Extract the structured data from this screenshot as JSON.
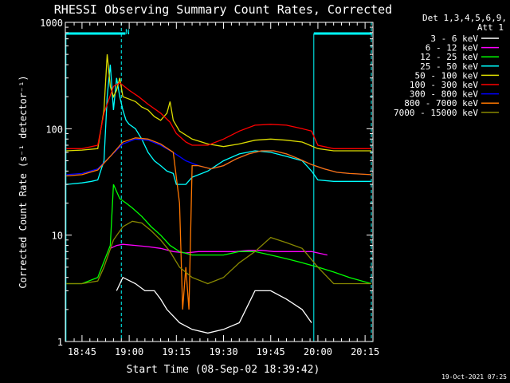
{
  "chart_data": {
    "type": "line",
    "title": "RHESSI Observing Summary Count Rates, Corrected",
    "xlabel": "Start Time (08-Sep-02 18:39:42)",
    "ylabel": "Corrected Count Rate (s⁻¹ detector⁻¹)",
    "yscale": "log",
    "ylim": [
      1,
      1000
    ],
    "xlim_minutes_after_18_00": [
      39.7,
      137.5
    ],
    "x_tick_labels": [
      "18:45",
      "19:00",
      "19:15",
      "19:30",
      "19:45",
      "20:00",
      "20:15"
    ],
    "x_tick_minutes_after_18_00": [
      45,
      60,
      75,
      90,
      105,
      120,
      135
    ],
    "y_tick_labels": [
      "1",
      "10",
      "100",
      "1000"
    ],
    "y_tick_values": [
      1,
      10,
      100,
      1000
    ],
    "legend_header": [
      "Det 1,3,4,5,6,9,",
      "Att 1"
    ],
    "legend_position": "right",
    "timestamp": "19-Oct-2021 07:25",
    "night_marker": "N",
    "event_line_minutes": [
      57.5,
      137.0
    ],
    "night_bar_minutes": [
      [
        39.9,
        58.8
      ],
      [
        118.7,
        137.2
      ]
    ],
    "series": [
      {
        "name": "3 - 6 keV",
        "color": "#ffffff",
        "x": [
          56,
          58,
          62,
          65,
          68,
          70,
          72,
          76,
          80,
          85,
          90,
          95,
          100,
          105,
          110,
          115,
          118
        ],
        "y": [
          3.0,
          4.0,
          3.5,
          3.0,
          3.0,
          2.5,
          2.0,
          1.5,
          1.3,
          1.2,
          1.3,
          1.5,
          3.0,
          3.0,
          2.5,
          2.0,
          1.5
        ]
      },
      {
        "name": "6 - 12 keV",
        "color": "#ff00ff",
        "x": [
          54,
          56,
          58,
          62,
          66,
          70,
          74,
          78,
          82,
          86,
          90,
          94,
          98,
          102,
          106,
          110,
          114,
          118,
          123
        ],
        "y": [
          7.5,
          8.0,
          8.2,
          8.0,
          7.8,
          7.5,
          7.0,
          6.8,
          7.0,
          7.0,
          7.0,
          7.0,
          7.2,
          7.2,
          7.0,
          7.0,
          7.0,
          7.0,
          6.5
        ]
      },
      {
        "name": "12 - 25 keV",
        "color": "#00ff00",
        "x": [
          40,
          45,
          50,
          54,
          55,
          57,
          59,
          61,
          64,
          67,
          70,
          73,
          76,
          80,
          85,
          90,
          95,
          100,
          105,
          110,
          115,
          120,
          125,
          130,
          137
        ],
        "y": [
          3.5,
          3.5,
          4.0,
          8.0,
          30.0,
          22.0,
          20.0,
          18.0,
          15.0,
          12.0,
          10.0,
          8.0,
          7.0,
          6.5,
          6.5,
          6.5,
          7.0,
          7.0,
          6.5,
          6.0,
          5.5,
          5.0,
          4.5,
          4.0,
          3.5
        ]
      },
      {
        "name": "25 - 50 keV",
        "color": "#00ffff",
        "x": [
          40,
          45,
          48,
          50,
          52,
          53,
          54,
          55,
          56,
          57,
          58,
          59,
          60,
          62,
          64,
          66,
          68,
          70,
          72,
          74,
          75,
          78,
          80,
          85,
          90,
          95,
          100,
          105,
          110,
          115,
          118,
          120,
          125,
          130,
          137
        ],
        "y": [
          30,
          31,
          32,
          33,
          50,
          200,
          400,
          150,
          300,
          200,
          150,
          120,
          110,
          100,
          80,
          60,
          50,
          45,
          40,
          38,
          30,
          30,
          35,
          40,
          50,
          58,
          62,
          60,
          55,
          50,
          40,
          33,
          32,
          32,
          32
        ]
      },
      {
        "name": "50 - 100 keV",
        "color": "#dddd00",
        "x": [
          40,
          45,
          50,
          52,
          53,
          54,
          55,
          56,
          57,
          58,
          60,
          62,
          64,
          66,
          68,
          70,
          72,
          73,
          74,
          76,
          80,
          85,
          90,
          95,
          100,
          105,
          110,
          115,
          120,
          125,
          130,
          137
        ],
        "y": [
          62,
          63,
          65,
          150,
          500,
          250,
          200,
          230,
          300,
          200,
          190,
          180,
          160,
          150,
          130,
          120,
          140,
          180,
          120,
          95,
          80,
          72,
          68,
          72,
          78,
          80,
          78,
          75,
          65,
          62,
          62,
          62
        ]
      },
      {
        "name": "100 - 300 keV",
        "color": "#ff0000",
        "x": [
          40,
          45,
          50,
          52,
          55,
          57,
          60,
          63,
          66,
          70,
          73,
          75,
          78,
          80,
          85,
          90,
          95,
          100,
          105,
          110,
          115,
          118,
          120,
          125,
          130,
          137
        ],
        "y": [
          65,
          65,
          70,
          140,
          250,
          270,
          230,
          200,
          170,
          140,
          115,
          90,
          75,
          70,
          70,
          80,
          95,
          108,
          110,
          108,
          100,
          95,
          70,
          65,
          65,
          65
        ]
      },
      {
        "name": "300 - 800 keV",
        "color": "#0000ff",
        "x": [
          40,
          45,
          50,
          54,
          58,
          62,
          66,
          70,
          74,
          78,
          82,
          86,
          90,
          94,
          98,
          102,
          106,
          110,
          114,
          118,
          122,
          126,
          130,
          137
        ],
        "y": [
          37,
          38,
          42,
          55,
          72,
          80,
          78,
          70,
          60,
          50,
          45,
          42,
          45,
          52,
          58,
          62,
          62,
          58,
          52,
          46,
          42,
          39,
          38,
          37
        ]
      },
      {
        "name": "800 - 7000 keV",
        "color": "#ff7700",
        "x": [
          40,
          45,
          50,
          54,
          58,
          62,
          66,
          70,
          74,
          76,
          77,
          78,
          79,
          80,
          82,
          86,
          90,
          94,
          98,
          102,
          106,
          110,
          114,
          118,
          122,
          126,
          130,
          137
        ],
        "y": [
          36,
          37,
          41,
          55,
          75,
          82,
          80,
          72,
          60,
          20,
          2,
          5,
          2,
          45,
          45,
          42,
          45,
          52,
          58,
          62,
          62,
          58,
          52,
          46,
          42,
          39,
          38,
          37
        ]
      },
      {
        "name": "7000 - 15000 keV",
        "color": "#888800",
        "x": [
          40,
          45,
          50,
          52,
          55,
          58,
          61,
          64,
          67,
          70,
          73,
          76,
          80,
          85,
          90,
          95,
          100,
          105,
          110,
          115,
          120,
          125,
          130,
          137
        ],
        "y": [
          3.5,
          3.5,
          3.7,
          5.0,
          9.0,
          12.0,
          13.5,
          13.0,
          11.0,
          9.0,
          7.0,
          5.0,
          4.0,
          3.5,
          4.0,
          5.5,
          7.0,
          9.5,
          8.5,
          7.5,
          5.0,
          3.5,
          3.5,
          3.5
        ]
      }
    ]
  }
}
